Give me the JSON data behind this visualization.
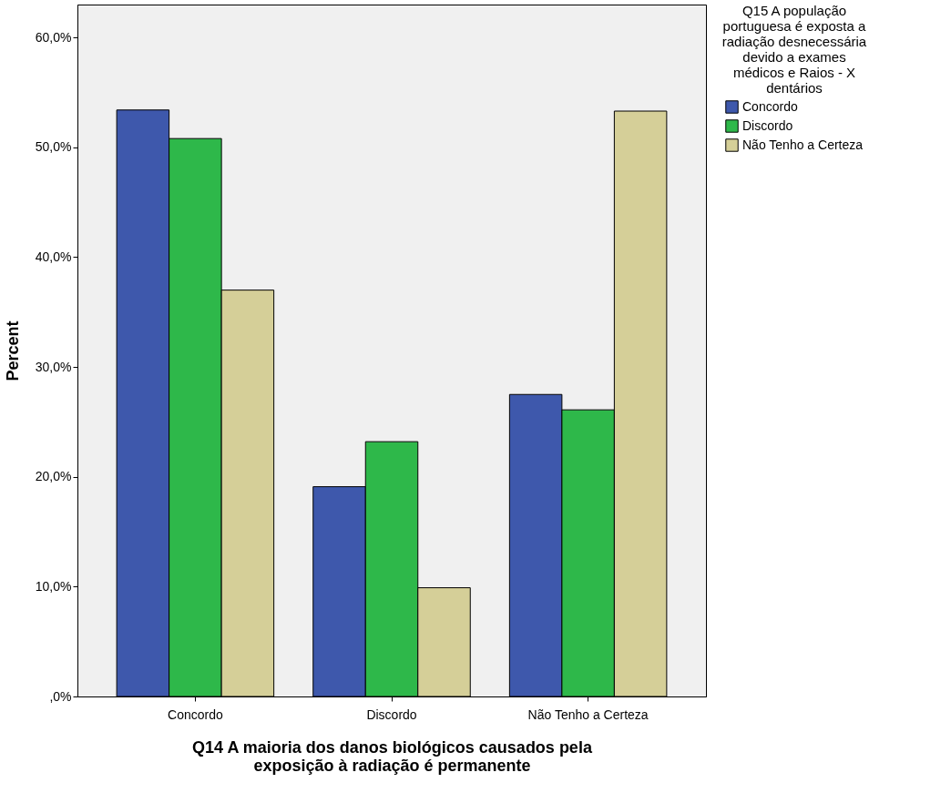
{
  "chart_data": {
    "type": "bar",
    "xlabel": "Q14 A maioria dos danos biológicos causados pela exposição à radiação é permanente",
    "ylabel": "Percent",
    "legend_title": "Q15 A população portuguesa é exposta a radiação desnecessária devido a exames médicos e Raios - X dentários",
    "legend": "top right",
    "grid": false,
    "categories": [
      "Concordo",
      "Discordo",
      "Não Tenho a Certeza"
    ],
    "series": [
      {
        "name": "Concordo",
        "color": "#3e58ac",
        "values": [
          53.4,
          19.1,
          27.5
        ]
      },
      {
        "name": "Discordo",
        "color": "#2eb84a",
        "values": [
          50.8,
          23.2,
          26.1
        ]
      },
      {
        "name": "Não Tenho a Certeza",
        "color": "#d5cf98",
        "values": [
          37.0,
          9.9,
          53.3
        ]
      }
    ],
    "ylim": [
      0,
      63
    ],
    "yticks": [
      {
        "value": 0,
        "label": ",0%"
      },
      {
        "value": 10,
        "label": "10,0%"
      },
      {
        "value": 20,
        "label": "20,0%"
      },
      {
        "value": 30,
        "label": "30,0%"
      },
      {
        "value": 40,
        "label": "40,0%"
      },
      {
        "value": 50,
        "label": "50,0%"
      },
      {
        "value": 60,
        "label": "60,0%"
      }
    ]
  }
}
